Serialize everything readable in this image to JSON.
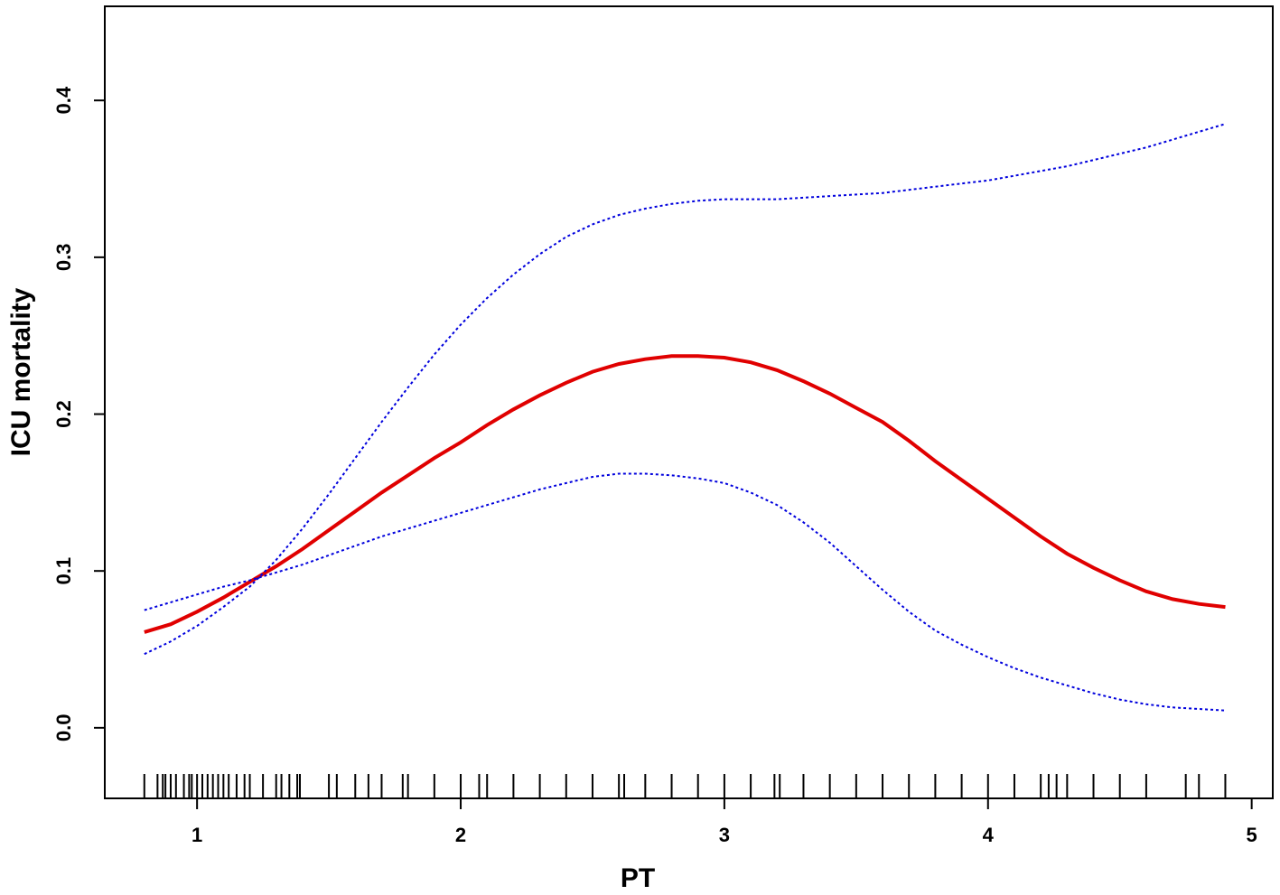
{
  "chart_data": {
    "type": "line",
    "title": "",
    "xlabel": "PT",
    "ylabel": "ICU mortality",
    "xlim": [
      0.65,
      5.08
    ],
    "ylim": [
      -0.045,
      0.46
    ],
    "xticks": [
      1,
      2,
      3,
      4,
      5
    ],
    "xtick_labels": [
      "1",
      "2",
      "3",
      "4",
      "5"
    ],
    "yticks": [
      0.0,
      0.1,
      0.2,
      0.3,
      0.4
    ],
    "ytick_labels": [
      "0.0",
      "0.1",
      "0.2",
      "0.3",
      "0.4"
    ],
    "grid": false,
    "series": [
      {
        "style": "solid",
        "color": "#e00000",
        "x": [
          0.8,
          0.9,
          1.0,
          1.1,
          1.2,
          1.3,
          1.4,
          1.5,
          1.6,
          1.7,
          1.8,
          1.9,
          2.0,
          2.1,
          2.2,
          2.3,
          2.4,
          2.5,
          2.6,
          2.7,
          2.8,
          2.9,
          3.0,
          3.1,
          3.2,
          3.3,
          3.4,
          3.5,
          3.6,
          3.7,
          3.8,
          3.9,
          4.0,
          4.1,
          4.2,
          4.3,
          4.4,
          4.5,
          4.6,
          4.7,
          4.8,
          4.9
        ],
        "y": [
          0.061,
          0.066,
          0.074,
          0.083,
          0.093,
          0.103,
          0.114,
          0.126,
          0.138,
          0.15,
          0.161,
          0.172,
          0.182,
          0.193,
          0.203,
          0.212,
          0.22,
          0.227,
          0.232,
          0.235,
          0.237,
          0.237,
          0.236,
          0.233,
          0.228,
          0.221,
          0.213,
          0.204,
          0.195,
          0.183,
          0.17,
          0.158,
          0.146,
          0.134,
          0.122,
          0.111,
          0.102,
          0.094,
          0.087,
          0.082,
          0.079,
          0.077
        ]
      },
      {
        "style": "dotted",
        "color": "#0000dd",
        "x": [
          0.8,
          0.9,
          1.0,
          1.1,
          1.2,
          1.3,
          1.4,
          1.5,
          1.6,
          1.7,
          1.8,
          1.9,
          2.0,
          2.1,
          2.2,
          2.3,
          2.4,
          2.5,
          2.6,
          2.7,
          2.8,
          2.9,
          3.0,
          3.1,
          3.2,
          3.3,
          3.4,
          3.5,
          3.6,
          3.7,
          3.8,
          3.9,
          4.0,
          4.1,
          4.2,
          4.3,
          4.4,
          4.5,
          4.6,
          4.7,
          4.8,
          4.9
        ],
        "y": [
          0.075,
          0.08,
          0.085,
          0.09,
          0.094,
          0.099,
          0.104,
          0.11,
          0.116,
          0.122,
          0.127,
          0.132,
          0.137,
          0.142,
          0.147,
          0.152,
          0.156,
          0.16,
          0.162,
          0.162,
          0.161,
          0.159,
          0.156,
          0.15,
          0.142,
          0.131,
          0.118,
          0.103,
          0.088,
          0.074,
          0.062,
          0.053,
          0.045,
          0.038,
          0.032,
          0.027,
          0.022,
          0.018,
          0.015,
          0.013,
          0.012,
          0.011
        ]
      },
      {
        "style": "dotted",
        "color": "#0000dd",
        "x": [
          0.8,
          0.9,
          1.0,
          1.1,
          1.2,
          1.3,
          1.4,
          1.5,
          1.6,
          1.7,
          1.8,
          1.9,
          2.0,
          2.1,
          2.2,
          2.3,
          2.4,
          2.5,
          2.6,
          2.7,
          2.8,
          2.9,
          3.0,
          3.1,
          3.2,
          3.3,
          3.4,
          3.5,
          3.6,
          3.7,
          3.8,
          3.9,
          4.0,
          4.1,
          4.2,
          4.3,
          4.4,
          4.5,
          4.6,
          4.7,
          4.8,
          4.9
        ],
        "y": [
          0.047,
          0.055,
          0.065,
          0.077,
          0.09,
          0.107,
          0.127,
          0.149,
          0.172,
          0.195,
          0.217,
          0.238,
          0.257,
          0.274,
          0.289,
          0.302,
          0.313,
          0.321,
          0.327,
          0.331,
          0.334,
          0.336,
          0.337,
          0.337,
          0.337,
          0.338,
          0.339,
          0.34,
          0.341,
          0.343,
          0.345,
          0.347,
          0.349,
          0.352,
          0.355,
          0.358,
          0.362,
          0.366,
          0.37,
          0.375,
          0.38,
          0.385
        ]
      }
    ],
    "rug": [
      0.8,
      0.85,
      0.87,
      0.88,
      0.9,
      0.92,
      0.95,
      0.97,
      0.98,
      1.0,
      1.02,
      1.04,
      1.06,
      1.08,
      1.1,
      1.12,
      1.15,
      1.18,
      1.2,
      1.25,
      1.3,
      1.32,
      1.35,
      1.38,
      1.39,
      1.5,
      1.53,
      1.6,
      1.65,
      1.7,
      1.78,
      1.8,
      1.9,
      2.0,
      2.07,
      2.1,
      2.2,
      2.3,
      2.4,
      2.5,
      2.6,
      2.62,
      2.7,
      2.8,
      2.9,
      3.0,
      3.1,
      3.19,
      3.21,
      3.3,
      3.4,
      3.5,
      3.6,
      3.7,
      3.8,
      3.9,
      4.0,
      4.1,
      4.2,
      4.23,
      4.26,
      4.3,
      4.4,
      4.5,
      4.6,
      4.75,
      4.8,
      4.9
    ]
  }
}
